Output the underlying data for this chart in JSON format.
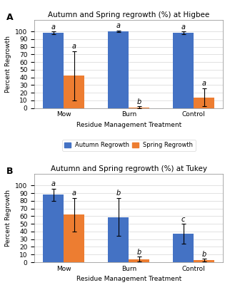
{
  "panel_A": {
    "title": "Autumn and Spring regrowth (%) at Higbee",
    "categories": [
      "Mow",
      "Burn",
      "Control"
    ],
    "autumn_values": [
      98,
      100,
      98
    ],
    "autumn_errors": [
      2,
      1,
      2
    ],
    "spring_values": [
      42,
      1,
      14
    ],
    "spring_errors": [
      32,
      1,
      12
    ],
    "autumn_letters": [
      "a",
      "a",
      "a"
    ],
    "spring_letters": [
      "a",
      "b",
      "a"
    ]
  },
  "panel_B": {
    "title": "Autumn and Spring regrowth (%) at Tukey",
    "categories": [
      "Mow",
      "Burn",
      "Control"
    ],
    "autumn_values": [
      88,
      59,
      37
    ],
    "autumn_errors": [
      8,
      25,
      13
    ],
    "spring_values": [
      62,
      4,
      2.5
    ],
    "spring_errors": [
      22,
      3,
      2
    ],
    "autumn_letters": [
      "a",
      "b",
      "c"
    ],
    "spring_letters": [
      "a",
      "b",
      "b"
    ]
  },
  "xlabel": "Residue Management Treatment",
  "ylabel": "Percent Regrowth",
  "ylim": [
    0,
    115
  ],
  "yticks": [
    0,
    10,
    20,
    30,
    40,
    50,
    60,
    70,
    80,
    90,
    100
  ],
  "bar_width": 0.32,
  "autumn_color": "#4472C4",
  "spring_color": "#ED7D31",
  "legend_autumn": "Autumn Regrowth",
  "legend_spring": "Spring Regrowth",
  "bg_color": "#FFFFFF",
  "letter_fontsize": 7,
  "axis_label_fontsize": 6.5,
  "tick_fontsize": 6.5,
  "title_fontsize": 7.5,
  "legend_fontsize": 6
}
